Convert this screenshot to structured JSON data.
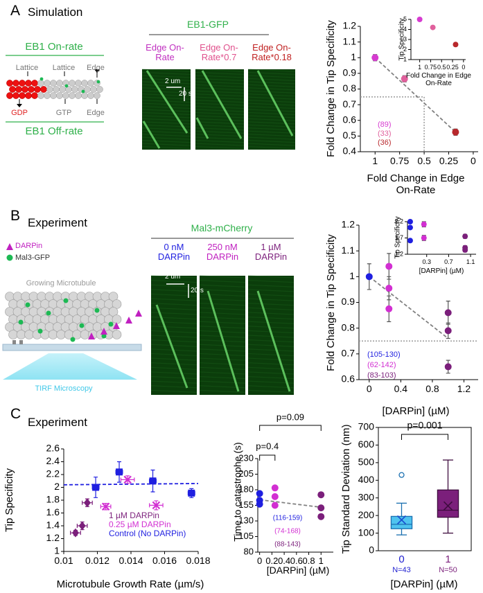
{
  "figure": {
    "panel_A": {
      "label": "A",
      "heading": "Simulation",
      "on_rate": "EB1 On-rate",
      "off_rate": "EB1 Off-rate",
      "top_labels": [
        "Lattice",
        "Lattice",
        "Edge"
      ],
      "bottom_labels": [
        "GDP",
        "GTP",
        "Edge"
      ],
      "kymo_title": "EB1-GFP",
      "kymo_labels": [
        "Edge On-Rate",
        "Edge On-Rate*0.7",
        "Edge On-Rate*0.18"
      ],
      "scale_x": "2 um",
      "scale_t": "20 s"
    },
    "panel_B": {
      "label": "B",
      "heading": "Experiment",
      "legend": [
        "DARPin",
        "Mal3-GFP"
      ],
      "microtubule": "Growing Microtubule",
      "microscopy": "TIRF Microscopy",
      "kymo_title": "Mal3-mCherry",
      "kymo_labels": [
        "0 nM DARPin",
        "250 nM DARPin",
        "1 µM DARPin"
      ],
      "scale_x": "2 um",
      "scale_t": "20 s"
    },
    "panel_C": {
      "label": "C",
      "heading": "Experiment"
    }
  },
  "chart_data": [
    {
      "type": "scatter",
      "ylabel": "Fold Change in Tip Specificity",
      "xlabel": "Fold Change in Edge On-Rate",
      "xlim": [
        1.15,
        -0.05
      ],
      "ylim": [
        0.4,
        1.2
      ],
      "xticks": [
        1,
        0.75,
        0.5,
        0.25,
        0
      ],
      "yticks": [
        0.4,
        0.5,
        0.6,
        0.7,
        0.8,
        0.9,
        1,
        1.1,
        1.2
      ],
      "series": [
        {
          "color": "#d63bd0",
          "marker": "circle",
          "x": [
            1
          ],
          "values": [
            1
          ],
          "errors": [
            0.02
          ]
        },
        {
          "color": "#e0609c",
          "marker": "circle",
          "x": [
            0.7
          ],
          "values": [
            0.865
          ],
          "errors": [
            0.02
          ]
        },
        {
          "color": "#b8282c",
          "marker": "circle",
          "x": [
            0.18
          ],
          "values": [
            0.525
          ],
          "errors": [
            0.02
          ]
        }
      ],
      "fit": {
        "color": "#808080",
        "x": [
          1,
          0.18
        ],
        "values": [
          1,
          0.525
        ]
      },
      "reference": {
        "x": 0.5,
        "y": 0.75
      },
      "annotations": [
        {
          "text": "(89)",
          "color": "#d63bd0"
        },
        {
          "text": "(33)",
          "color": "#e0609c"
        },
        {
          "text": "(36)",
          "color": "#b8282c"
        }
      ]
    },
    {
      "type": "scatter",
      "ylabel": "Tip Specificity",
      "xlabel": "Fold Change in Edge On-Rate",
      "xlim": [
        1.2,
        -0.05
      ],
      "ylim": [
        1,
        5
      ],
      "xticks": [
        1,
        0.75,
        0.5,
        0.25,
        0
      ],
      "yticks": [
        1,
        2,
        3,
        4,
        5
      ],
      "series": [
        {
          "color": "#d63bd0",
          "marker": "circle",
          "x": [
            1
          ],
          "values": [
            5
          ]
        },
        {
          "color": "#e0609c",
          "marker": "circle",
          "x": [
            0.7
          ],
          "values": [
            4.2
          ]
        },
        {
          "color": "#b8282c",
          "marker": "circle",
          "x": [
            0.18
          ],
          "values": [
            2.5
          ]
        }
      ]
    },
    {
      "type": "scatter",
      "ylabel": "Fold Change in Tip Specificity",
      "xlabel": "[DARPin] (µM)",
      "xlim": [
        -0.13,
        1.38
      ],
      "ylim": [
        0.6,
        1.2
      ],
      "xticks": [
        0,
        0.4,
        0.8,
        1.2
      ],
      "yticks": [
        0.6,
        0.7,
        0.8,
        0.9,
        1,
        1.1,
        1.2
      ],
      "series": [
        {
          "color": "#1f1fe0",
          "marker": "circle",
          "x": [
            0
          ],
          "values": [
            1
          ],
          "errors": [
            0.05
          ]
        },
        {
          "color": "#d22fd2",
          "marker": "circle",
          "x": [
            0.25,
            0.25,
            0.25
          ],
          "values": [
            1.04,
            0.955,
            0.875
          ],
          "errors": [
            0.05,
            0.045,
            0.05
          ]
        },
        {
          "color": "#7b1f7b",
          "marker": "circle",
          "x": [
            1,
            1,
            1
          ],
          "values": [
            0.86,
            0.79,
            0.65
          ],
          "errors": [
            0.045,
            0.03,
            0.025
          ]
        }
      ],
      "fit": {
        "color": "#808080",
        "x": [
          0,
          1
        ],
        "values": [
          1,
          0.76
        ]
      },
      "reference": {
        "y": 0.75
      },
      "annotations": [
        {
          "text": "(105-130)",
          "color": "#1f1fe0"
        },
        {
          "text": "(62-142)",
          "color": "#d22fd2"
        },
        {
          "text": "(83-103)",
          "color": "#7b1f7b"
        }
      ]
    },
    {
      "type": "scatter",
      "ylabel": "Tip Specificity",
      "xlabel": "[DARPin] (µM)",
      "xlim": [
        -0.05,
        1.2
      ],
      "ylim": [
        1.2,
        2.2
      ],
      "xticks": [
        0.3,
        0.7,
        1.1
      ],
      "yticks": [
        1.2,
        1.7,
        2.2
      ],
      "series": [
        {
          "color": "#1f1fe0",
          "marker": "circle",
          "x": [
            0,
            0,
            0
          ],
          "values": [
            2.2,
            2.02,
            1.62
          ]
        },
        {
          "color": "#d22fd2",
          "marker": "circle",
          "x": [
            0.25,
            0.25
          ],
          "values": [
            2.12,
            1.7
          ],
          "errors": [
            0.08,
            0.08
          ]
        },
        {
          "color": "#7b1f7b",
          "marker": "circle",
          "x": [
            1,
            1,
            1
          ],
          "values": [
            1.75,
            1.4,
            1.33
          ],
          "errors": [
            0.06,
            0.06,
            0.06
          ]
        }
      ]
    },
    {
      "type": "scatter",
      "ylabel": "Tip Specificity",
      "xlabel": "Microtubule Growth Rate (µm/s)",
      "xlim": [
        0.01,
        0.018
      ],
      "ylim": [
        1,
        2.6
      ],
      "xticks": [
        0.01,
        0.012,
        0.014,
        0.016,
        0.018
      ],
      "yticks": [
        1,
        1.2,
        1.4,
        1.6,
        1.8,
        2,
        2.2,
        2.4,
        2.6
      ],
      "legend": true,
      "series": [
        {
          "name": "1 µM DARPin",
          "color": "#7b1f7b",
          "marker": "diamond",
          "x": [
            0.0107,
            0.0111,
            0.0114
          ],
          "values": [
            1.29,
            1.4,
            1.76
          ],
          "errors": [
            0.04,
            0.06,
            0.06
          ],
          "xerrors": [
            0.0003,
            0.0003,
            0.0003
          ]
        },
        {
          "name": "0.25 µM DARPin",
          "color": "#d22fd2",
          "marker": "cross",
          "x": [
            0.0125,
            0.0138,
            0.0155
          ],
          "values": [
            1.7,
            2.12,
            1.72
          ],
          "errors": [
            0.05,
            0.06,
            0.07
          ],
          "xerrors": [
            0.0003,
            0.0004,
            0.0004
          ]
        },
        {
          "name": "Control (No DARPin)",
          "color": "#1f1fe0",
          "marker": "square",
          "x": [
            0.0119,
            0.0133,
            0.0153,
            0.0176
          ],
          "values": [
            2.0,
            2.24,
            2.1,
            1.91
          ],
          "errors": [
            0.16,
            0.16,
            0.17,
            0.07
          ],
          "xerrors": [
            0.0002,
            0.0002,
            0.0002,
            0.0002
          ]
        }
      ],
      "fit": {
        "color": "#1f1fe0",
        "x": [
          0.01,
          0.018
        ],
        "values": [
          2.04,
          2.06
        ]
      }
    },
    {
      "type": "scatter",
      "ylabel": "Time to catastrophe (s)",
      "xlabel": "[DARPin] (µM)",
      "xlim": [
        -0.03,
        1.2
      ],
      "ylim": [
        80,
        230
      ],
      "xticks": [
        0,
        0.2,
        0.4,
        0.6,
        0.8,
        1
      ],
      "yticks": [
        80,
        105,
        130,
        155,
        180,
        205,
        230
      ],
      "series": [
        {
          "color": "#1f1fe0",
          "marker": "circle",
          "x": [
            0,
            0,
            0
          ],
          "values": [
            174,
            163,
            157
          ]
        },
        {
          "color": "#d22fd2",
          "marker": "circle",
          "x": [
            0.25,
            0.25,
            0.25
          ],
          "values": [
            183,
            169,
            155
          ]
        },
        {
          "color": "#7b1f7b",
          "marker": "circle",
          "x": [
            1,
            1,
            1
          ],
          "values": [
            172,
            151,
            137
          ]
        }
      ],
      "fit": {
        "color": "#808080",
        "x": [
          0,
          1
        ],
        "values": [
          164,
          152
        ]
      },
      "brackets": [
        {
          "label": "p=0.4",
          "x": [
            0,
            0.25
          ]
        },
        {
          "label": "p=0.09",
          "x": [
            0,
            1
          ]
        }
      ],
      "annotations": [
        {
          "text": "(116-159)",
          "color": "#1f1fe0"
        },
        {
          "text": "(74-168)",
          "color": "#d22fd2"
        },
        {
          "text": "(88-143)",
          "color": "#7b1f7b"
        }
      ]
    },
    {
      "type": "box",
      "ylabel": "Tip Standard Deviation (nm)",
      "xlabel": "[DARPin] (µM)",
      "ylim": [
        0,
        700
      ],
      "yticks": [
        0,
        100,
        200,
        300,
        400,
        500,
        600,
        700
      ],
      "categories": [
        "0",
        "1"
      ],
      "n_labels": [
        "N=43",
        "N=50"
      ],
      "label_colors": [
        "#2020d0",
        "#7b1f7b"
      ],
      "boxes": [
        {
          "fill": "#4fc3ef",
          "edge": "#1a6fb0",
          "whisker_low": 90,
          "q1": 125,
          "median": 150,
          "q3": 195,
          "whisker_high": 270,
          "mean": 175,
          "outliers": [
            430
          ]
        },
        {
          "fill": "#7b1f7b",
          "edge": "#3e0c3e",
          "whisker_low": 100,
          "q1": 190,
          "median": 230,
          "q3": 345,
          "whisker_high": 515,
          "mean": 255,
          "outliers": []
        }
      ],
      "brackets": [
        {
          "label": "p=0.001"
        }
      ]
    }
  ]
}
